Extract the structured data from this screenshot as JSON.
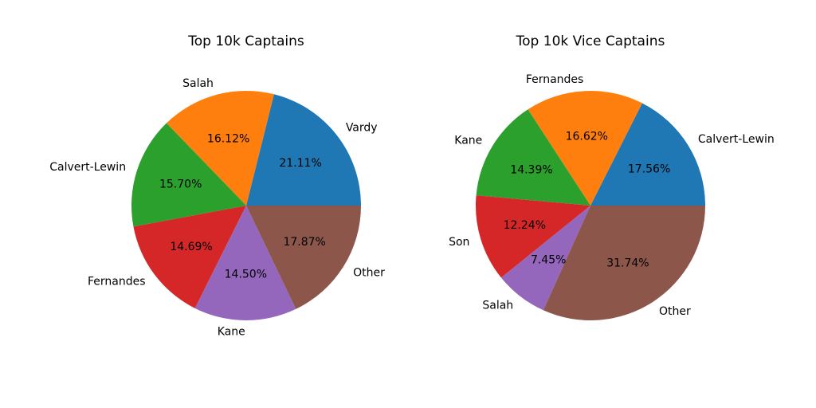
{
  "chart_data": [
    {
      "type": "pie",
      "title": "Top 10k Captains",
      "start_angle_deg": 0,
      "direction": "counterclockwise",
      "slices": [
        {
          "label": "Vardy",
          "value": 21.11,
          "pct_label": "21.11%",
          "color": "#1f77b4"
        },
        {
          "label": "Salah",
          "value": 16.12,
          "pct_label": "16.12%",
          "color": "#ff7f0e"
        },
        {
          "label": "Calvert-Lewin",
          "value": 15.7,
          "pct_label": "15.70%",
          "color": "#2ca02c"
        },
        {
          "label": "Fernandes",
          "value": 14.69,
          "pct_label": "14.69%",
          "color": "#d62728"
        },
        {
          "label": "Kane",
          "value": 14.5,
          "pct_label": "14.50%",
          "color": "#9467bd"
        },
        {
          "label": "Other",
          "value": 17.87,
          "pct_label": "17.87%",
          "color": "#8c564b"
        }
      ]
    },
    {
      "type": "pie",
      "title": "Top 10k Vice Captains",
      "start_angle_deg": 0,
      "direction": "counterclockwise",
      "slices": [
        {
          "label": "Calvert-Lewin",
          "value": 17.56,
          "pct_label": "17.56%",
          "color": "#1f77b4"
        },
        {
          "label": "Fernandes",
          "value": 16.62,
          "pct_label": "16.62%",
          "color": "#ff7f0e"
        },
        {
          "label": "Kane",
          "value": 14.39,
          "pct_label": "14.39%",
          "color": "#2ca02c"
        },
        {
          "label": "Son",
          "value": 12.24,
          "pct_label": "12.24%",
          "color": "#d62728"
        },
        {
          "label": "Salah",
          "value": 7.45,
          "pct_label": "7.45%",
          "color": "#9467bd"
        },
        {
          "label": "Other",
          "value": 31.74,
          "pct_label": "31.74%",
          "color": "#8c564b"
        }
      ]
    }
  ]
}
